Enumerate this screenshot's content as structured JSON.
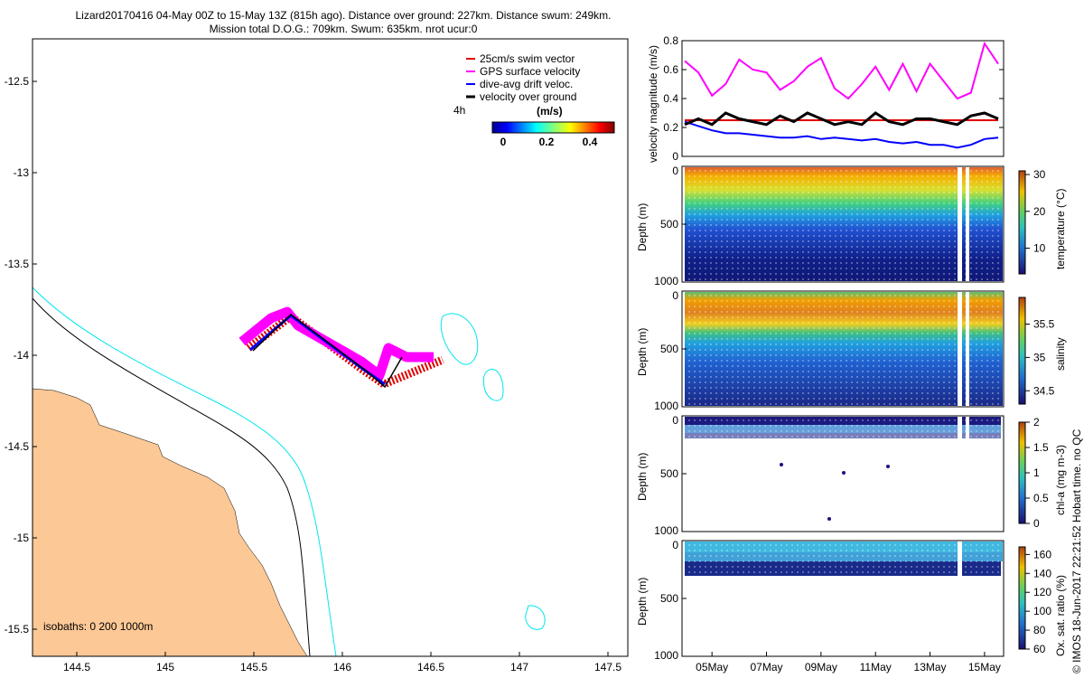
{
  "header": {
    "line1": "Lizard20170416 04-May 00Z to 15-May 13Z (815h ago). Distance over ground: 227km. Distance swum: 249km.",
    "line2": "Mission total D.O.G.: 709km. Swum: 635km. nrot ucur:0"
  },
  "credit": "© IMOS 18-Jun-2017 22:21:52 Hobart time. no QC",
  "map": {
    "x_ticks": [
      "144.5",
      "145",
      "145.5",
      "146",
      "146.5",
      "147",
      "147.5"
    ],
    "y_ticks": [
      "-12.5",
      "-13",
      "-13.5",
      "-14",
      "-14.5",
      "-15",
      "-15.5"
    ],
    "isobaths_label": "isobaths: 0   200  1000m",
    "legend": [
      {
        "label": "25cm/s swim vector",
        "color": "#e00000"
      },
      {
        "label": "GPS surface velocity",
        "color": "#ff00ff"
      },
      {
        "label": "dive-avg drift veloc.",
        "color": "#0000ff"
      },
      {
        "label": "velocity over ground",
        "color": "#000000"
      }
    ],
    "interval_label": "4h",
    "colorbar_unit": "(m/s)",
    "colorbar_ticks": [
      "0",
      "0.2",
      "0.4"
    ],
    "land_color": "#fcc896",
    "isobath_200_color": "#00e5ee",
    "isobath_1000_color": "#000000"
  },
  "chart_data": [
    {
      "type": "line",
      "ylabel": "velocity magnitude (m/s)",
      "ylim": [
        0,
        0.8
      ],
      "y_ticks": [
        "0",
        "0.2",
        "0.4",
        "0.6",
        "0.8"
      ],
      "x_days": [
        4,
        4.5,
        5,
        5.5,
        6,
        6.5,
        7,
        7.5,
        8,
        8.5,
        9,
        9.5,
        10,
        10.5,
        11,
        11.5,
        12,
        12.5,
        13,
        13.5,
        14,
        14.5,
        15,
        15.5
      ],
      "series": [
        {
          "name": "GPS surface velocity",
          "color": "#ff00ff",
          "values": [
            0.66,
            0.58,
            0.42,
            0.5,
            0.67,
            0.6,
            0.58,
            0.46,
            0.52,
            0.62,
            0.68,
            0.47,
            0.4,
            0.5,
            0.62,
            0.46,
            0.64,
            0.45,
            0.64,
            0.52,
            0.4,
            0.44,
            0.78,
            0.64
          ]
        },
        {
          "name": "velocity over ground",
          "color": "#000000",
          "values": [
            0.22,
            0.26,
            0.22,
            0.3,
            0.26,
            0.24,
            0.22,
            0.28,
            0.24,
            0.3,
            0.26,
            0.22,
            0.24,
            0.22,
            0.3,
            0.24,
            0.22,
            0.26,
            0.26,
            0.24,
            0.22,
            0.28,
            0.3,
            0.26
          ]
        },
        {
          "name": "dive-avg drift veloc.",
          "color": "#0000ff",
          "values": [
            0.24,
            0.21,
            0.18,
            0.16,
            0.16,
            0.15,
            0.14,
            0.13,
            0.13,
            0.14,
            0.12,
            0.13,
            0.12,
            0.11,
            0.12,
            0.1,
            0.09,
            0.1,
            0.08,
            0.08,
            0.06,
            0.08,
            0.12,
            0.13
          ]
        },
        {
          "name": "25cm/s swim vector",
          "color": "#e00000",
          "values": [
            0.25,
            0.25,
            0.25,
            0.25,
            0.25,
            0.25,
            0.25,
            0.25,
            0.25,
            0.25,
            0.25,
            0.25,
            0.25,
            0.25,
            0.25,
            0.25,
            0.25,
            0.25,
            0.25,
            0.25,
            0.25,
            0.25,
            0.25,
            0.25
          ]
        }
      ]
    },
    {
      "type": "scatter",
      "ylabel": "Depth (m)",
      "ylim": [
        1000,
        0
      ],
      "y_ticks": [
        "0",
        "500",
        "1000"
      ],
      "colorbar_label": "temperature (°C)",
      "colorbar_ticks": [
        "10",
        "20",
        "30"
      ]
    },
    {
      "type": "scatter",
      "ylabel": "Depth (m)",
      "ylim": [
        1000,
        0
      ],
      "y_ticks": [
        "0",
        "500",
        "1000"
      ],
      "colorbar_label": "salinity",
      "colorbar_ticks": [
        "34.5",
        "35",
        "35.5"
      ]
    },
    {
      "type": "scatter",
      "ylabel": "Depth (m)",
      "ylim": [
        1000,
        0
      ],
      "y_ticks": [
        "0",
        "500",
        "1000"
      ],
      "colorbar_label": "chl-a (mg m-3)",
      "colorbar_ticks": [
        "0",
        "0.5",
        "1",
        "1.5",
        "2"
      ]
    },
    {
      "type": "scatter",
      "ylabel": "Depth (m)",
      "ylim": [
        1000,
        0
      ],
      "y_ticks": [
        "0",
        "500",
        "1000"
      ],
      "x_ticks": [
        "05May",
        "07May",
        "09May",
        "11May",
        "13May",
        "15May"
      ],
      "colorbar_label": "Ox. sat. ratio (%)",
      "colorbar_ticks": [
        "60",
        "80",
        "100",
        "120",
        "140",
        "160"
      ]
    }
  ]
}
